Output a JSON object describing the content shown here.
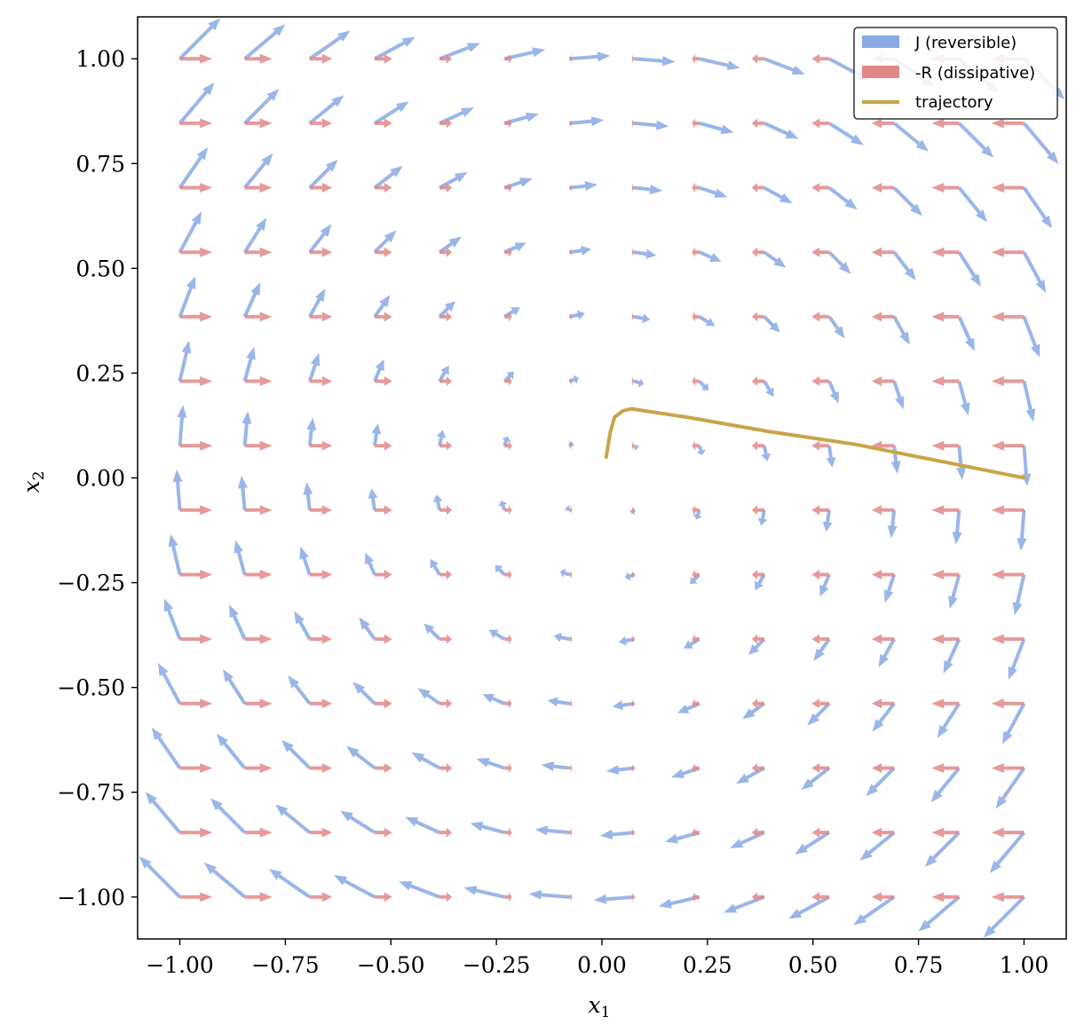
{
  "chart_data": {
    "type": "quiver",
    "xlabel": "x",
    "xlabel_sub": "1",
    "ylabel": "x",
    "ylabel_sub": "2",
    "xlim": [
      -1.1,
      1.1
    ],
    "ylim": [
      -1.1,
      1.1
    ],
    "xticks": [
      "−1.00",
      "−0.75",
      "−0.50",
      "−0.25",
      "0.00",
      "0.25",
      "0.50",
      "0.75",
      "1.00"
    ],
    "yticks": [
      "1.00",
      "0.75",
      "0.50",
      "0.25",
      "0.00",
      "−0.25",
      "−0.50",
      "−0.75",
      "−1.00"
    ],
    "xtick_values": [
      -1.0,
      -0.75,
      -0.5,
      -0.25,
      0.0,
      0.25,
      0.5,
      0.75,
      1.0
    ],
    "ytick_values": [
      1.0,
      0.75,
      0.5,
      0.25,
      0.0,
      -0.25,
      -0.5,
      -0.75,
      -1.0
    ],
    "grid": false,
    "legend_position": "top-right",
    "grid_points": {
      "x": [
        -1.0,
        -0.8462,
        -0.6923,
        -0.5385,
        -0.3846,
        -0.2308,
        -0.0769,
        0.0769,
        0.2308,
        0.3846,
        0.5385,
        0.6923,
        0.8462,
        1.0
      ],
      "y": [
        -1.0,
        -0.8462,
        -0.6923,
        -0.5385,
        -0.3846,
        -0.2308,
        -0.0769,
        0.0769,
        0.2308,
        0.3846,
        0.5385,
        0.6923,
        0.8462,
        1.0
      ]
    },
    "field": {
      "J": "(x2, -x1)",
      "R": "(-0.5*x1, 0)"
    },
    "series": [
      {
        "name": "J (reversible)",
        "kind": "quiver",
        "color": "#88a9e4"
      },
      {
        "name": "-R (dissipative)",
        "kind": "quiver",
        "color": "#e08888"
      },
      {
        "name": "trajectory",
        "kind": "line",
        "color": "#c8a447",
        "x": [
          1.0,
          0.8,
          0.6,
          0.4,
          0.2,
          0.1,
          0.07,
          0.05,
          0.03,
          0.02,
          0.01
        ],
        "y": [
          0.0,
          0.04,
          0.08,
          0.11,
          0.145,
          0.16,
          0.165,
          0.16,
          0.145,
          0.11,
          0.05
        ]
      }
    ]
  }
}
